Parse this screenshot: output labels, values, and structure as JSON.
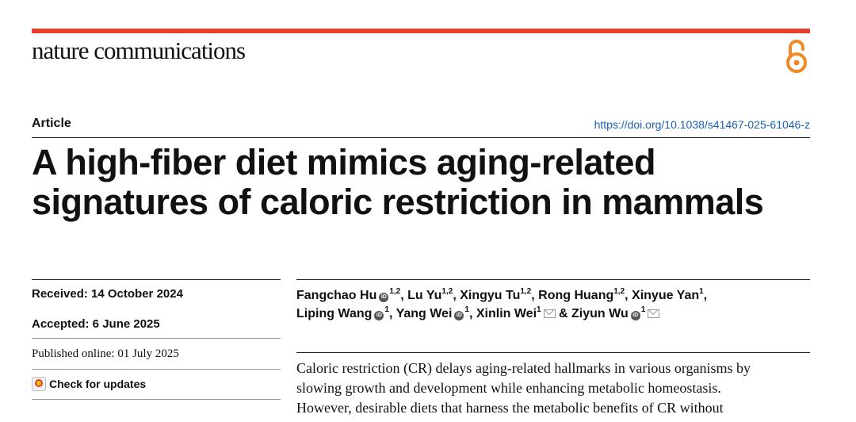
{
  "journal": {
    "name": "nature communications",
    "accent": "#e4402b"
  },
  "article": {
    "type": "Article",
    "doi": "https://doi.org/10.1038/s41467-025-61046-z",
    "title_lines": [
      "A high-fiber diet mimics aging-related",
      "signatures of caloric restriction in mammals"
    ]
  },
  "dates": {
    "received": "Received: 14 October 2024",
    "accepted": "Accepted: 6 June 2025",
    "published": "Published online: 01 July 2025"
  },
  "check_updates": {
    "label": "Check for updates",
    "icon": "check-updates-icon"
  },
  "authors": [
    {
      "name": "Fangchao Hu",
      "sup": "1,2",
      "orcid": true,
      "sep": ", "
    },
    {
      "name": "Lu Yu",
      "sup": "1,2",
      "orcid": false,
      "sep": ", "
    },
    {
      "name": "Xingyu Tu",
      "sup": "1,2",
      "orcid": false,
      "sep": ", "
    },
    {
      "name": "Rong Huang",
      "sup": "1,2",
      "orcid": false,
      "sep": ", "
    },
    {
      "name": "Xinyue Yan",
      "sup": "1",
      "orcid": false,
      "sep": ","
    },
    {
      "name": "Liping Wang",
      "sup": "1",
      "orcid": true,
      "sep": ", "
    },
    {
      "name": "Yang Wei",
      "sup": "1",
      "orcid": true,
      "sep": ", "
    },
    {
      "name": "Xinlin Wei",
      "sup": "1",
      "orcid": false,
      "mail": true,
      "sep": " & "
    },
    {
      "name": "Ziyun Wu",
      "sup": "1",
      "orcid": true,
      "mail": true,
      "sep": ""
    }
  ],
  "abstract_lines": [
    "Caloric restriction (CR) delays aging-related hallmarks in various organisms by",
    "slowing growth and development while enhancing metabolic homeostasis.",
    "However, desirable diets that harness the metabolic benefits of CR without"
  ]
}
